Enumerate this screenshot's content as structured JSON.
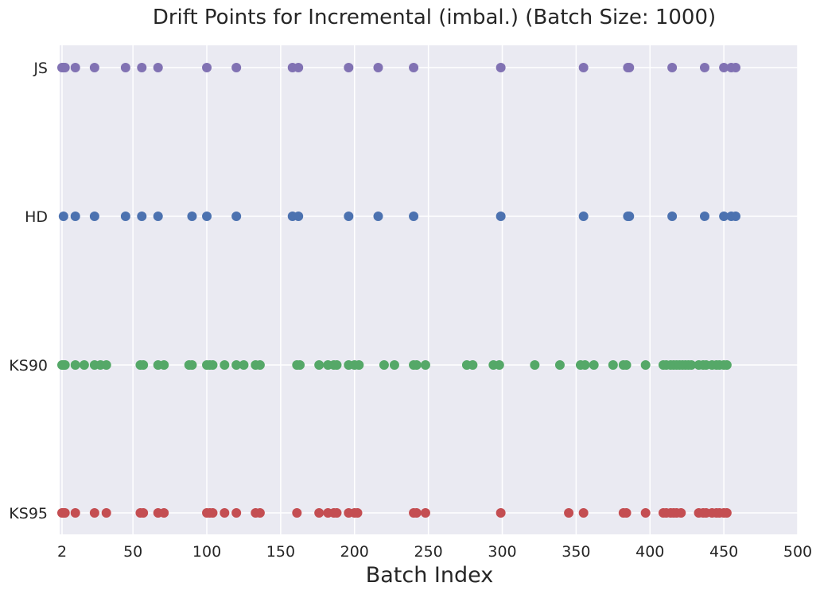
{
  "chart_data": {
    "type": "scatter",
    "title": "Drift Points for Incremental (imbal.) (Batch Size: 1000)",
    "xlabel": "Batch Index",
    "ylabel": "",
    "xlim": [
      2,
      500
    ],
    "x_ticks": [
      2,
      50,
      100,
      150,
      200,
      250,
      300,
      350,
      400,
      450,
      500
    ],
    "y_categories": [
      "KS95",
      "KS90",
      "HD",
      "JS"
    ],
    "grid": true,
    "background": "#eaeaf2",
    "series": [
      {
        "name": "JS",
        "color": "#8172b3",
        "x": [
          2,
          3,
          4,
          11,
          24,
          45,
          56,
          67,
          100,
          120,
          158,
          162,
          196,
          216,
          240,
          299,
          355,
          385,
          386,
          415,
          437,
          450,
          455,
          458
        ]
      },
      {
        "name": "HD",
        "color": "#4c72b0",
        "x": [
          3,
          11,
          24,
          45,
          56,
          67,
          90,
          100,
          120,
          158,
          162,
          196,
          216,
          240,
          299,
          355,
          385,
          386,
          415,
          437,
          450,
          455,
          458
        ]
      },
      {
        "name": "KS90",
        "color": "#55a868",
        "x": [
          2,
          3,
          4,
          11,
          17,
          24,
          28,
          32,
          55,
          57,
          67,
          71,
          88,
          90,
          100,
          102,
          104,
          112,
          120,
          125,
          133,
          136,
          161,
          163,
          176,
          182,
          186,
          188,
          196,
          200,
          203,
          220,
          227,
          240,
          242,
          248,
          276,
          280,
          294,
          298,
          322,
          339,
          353,
          356,
          362,
          375,
          382,
          384,
          397,
          409,
          411,
          414,
          416,
          418,
          420,
          422,
          424,
          426,
          428,
          433,
          436,
          438,
          442,
          445,
          447,
          450,
          452
        ]
      },
      {
        "name": "KS95",
        "color": "#c44e52",
        "x": [
          2,
          3,
          4,
          11,
          24,
          32,
          55,
          57,
          67,
          71,
          100,
          102,
          104,
          112,
          120,
          133,
          136,
          161,
          176,
          182,
          186,
          188,
          196,
          200,
          202,
          240,
          242,
          248,
          299,
          345,
          355,
          382,
          384,
          397,
          409,
          411,
          414,
          416,
          418,
          421,
          433,
          436,
          438,
          442,
          445,
          447,
          450,
          452
        ]
      }
    ]
  }
}
